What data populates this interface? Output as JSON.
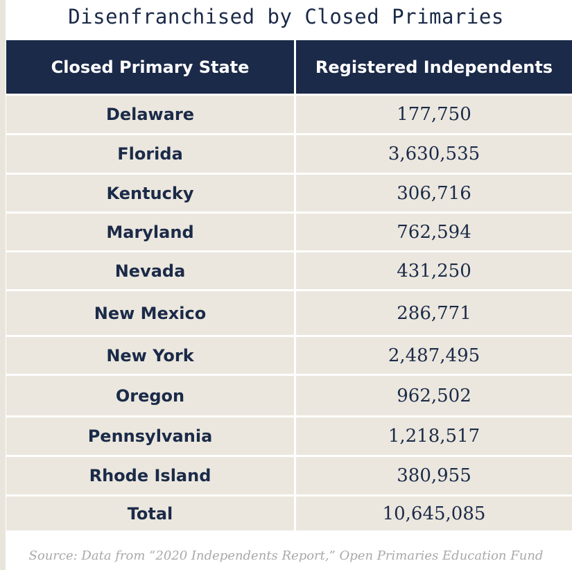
{
  "chart_data": {
    "type": "table",
    "title": "Disenfranchised by Closed Primaries",
    "columns": [
      "Closed Primary State",
      "Registered Independents"
    ],
    "rows": [
      {
        "state": "Delaware",
        "value": "177,750"
      },
      {
        "state": "Florida",
        "value": "3,630,535"
      },
      {
        "state": "Kentucky",
        "value": "306,716"
      },
      {
        "state": "Maryland",
        "value": "762,594"
      },
      {
        "state": "Nevada",
        "value": "431,250"
      },
      {
        "state": "New Mexico",
        "value": "286,771"
      },
      {
        "state": "New York",
        "value": "2,487,495"
      },
      {
        "state": "Oregon",
        "value": "962,502"
      },
      {
        "state": "Pennsylvania",
        "value": "1,218,517"
      },
      {
        "state": "Rhode Island",
        "value": "380,955"
      },
      {
        "state": "Total",
        "value": "10,645,085"
      }
    ],
    "source": "Source: Data from “2020 Independents Report,” Open Primaries Education Fund"
  },
  "colors": {
    "header_bg": "#1b2a48",
    "row_bg": "#ebe7de",
    "text": "#1b2a48",
    "source_text": "#a9a9a9"
  }
}
